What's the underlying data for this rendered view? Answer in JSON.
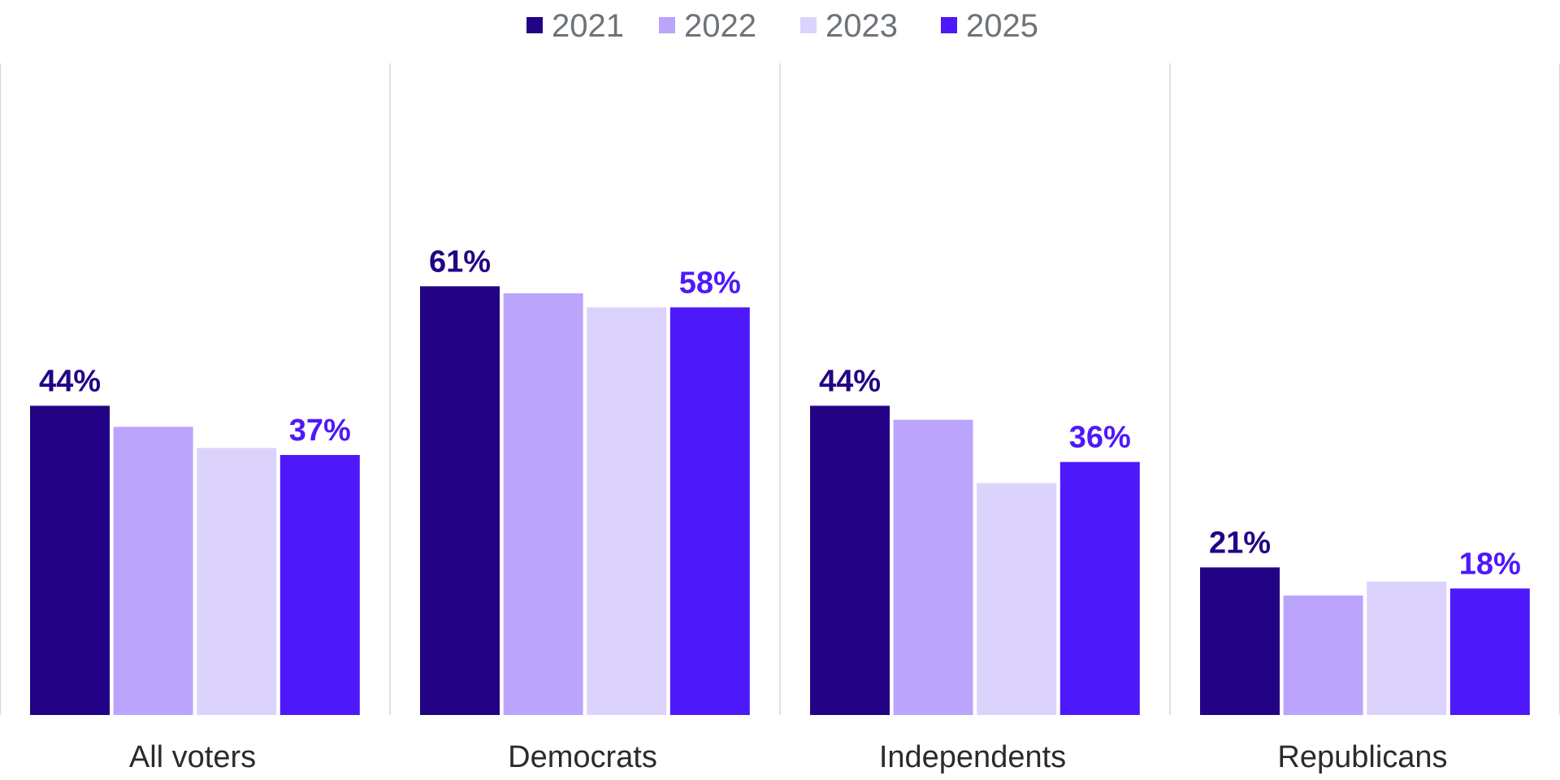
{
  "chart_data": {
    "type": "bar",
    "categories": [
      "All voters",
      "Democrats",
      "Independents",
      "Republicans"
    ],
    "series": [
      {
        "name": "2021",
        "color": "#230385",
        "values": [
          44,
          61,
          44,
          21
        ]
      },
      {
        "name": "2022",
        "color": "#baa4fc",
        "values": [
          41,
          60,
          42,
          17
        ]
      },
      {
        "name": "2023",
        "color": "#dcd3fd",
        "values": [
          38,
          58,
          33,
          19
        ]
      },
      {
        "name": "2025",
        "color": "#4e19fa",
        "values": [
          37,
          58,
          36,
          18
        ]
      }
    ],
    "data_labels": [
      {
        "category": 0,
        "series": 0,
        "text": "44%"
      },
      {
        "category": 0,
        "series": 3,
        "text": "37%"
      },
      {
        "category": 1,
        "series": 0,
        "text": "61%"
      },
      {
        "category": 1,
        "series": 3,
        "text": "58%"
      },
      {
        "category": 2,
        "series": 0,
        "text": "44%"
      },
      {
        "category": 2,
        "series": 3,
        "text": "36%"
      },
      {
        "category": 3,
        "series": 0,
        "text": "21%"
      },
      {
        "category": 3,
        "series": 3,
        "text": "18%"
      }
    ],
    "ylim": [
      0,
      100
    ],
    "legend": "top-center",
    "grid": false
  }
}
